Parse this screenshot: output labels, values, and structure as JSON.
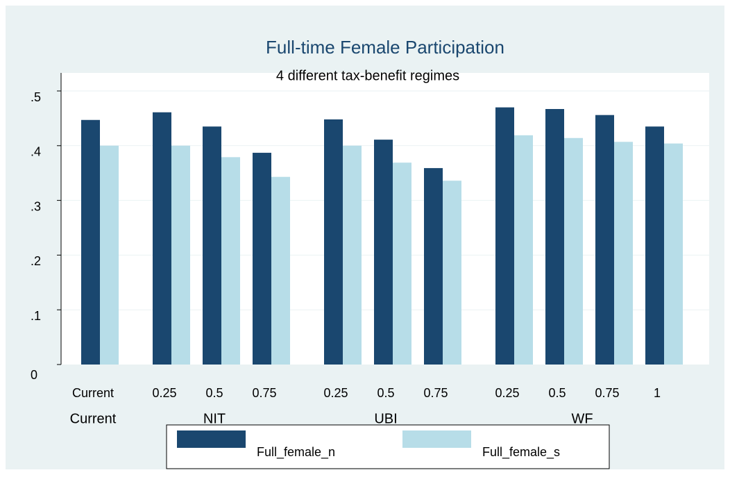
{
  "chart_data": {
    "type": "bar",
    "title": "Full-time Female Participation",
    "subtitle": "4 different tax-benefit regimes",
    "groups": [
      {
        "name": "Current",
        "categories": [
          "Current"
        ]
      },
      {
        "name": "NIT",
        "categories": [
          "0.25",
          "0.5",
          "0.75"
        ]
      },
      {
        "name": "UBI",
        "categories": [
          "0.25",
          "0.5",
          "0.75"
        ]
      },
      {
        "name": "WF",
        "categories": [
          "0.25",
          "0.5",
          "0.75",
          "1"
        ]
      }
    ],
    "series": [
      {
        "name": "Full_female_n",
        "color": "#1a476f",
        "values": [
          0.447,
          0.461,
          0.435,
          0.387,
          0.448,
          0.411,
          0.359,
          0.47,
          0.467,
          0.456,
          0.435
        ]
      },
      {
        "name": "Full_female_s",
        "color": "#b7dde8",
        "values": [
          0.4,
          0.4,
          0.379,
          0.343,
          0.4,
          0.369,
          0.336,
          0.419,
          0.414,
          0.407,
          0.404
        ]
      }
    ],
    "ylim": [
      0,
      0.5
    ],
    "yticks": [
      0,
      {
        "value": 0.1,
        "label": ".1"
      },
      {
        "value": 0.2,
        "label": ".2"
      },
      {
        "value": 0.3,
        "label": ".3"
      },
      {
        "value": 0.4,
        "label": ".4"
      },
      {
        "value": 0.5,
        "label": ".5"
      }
    ],
    "grid": true
  }
}
